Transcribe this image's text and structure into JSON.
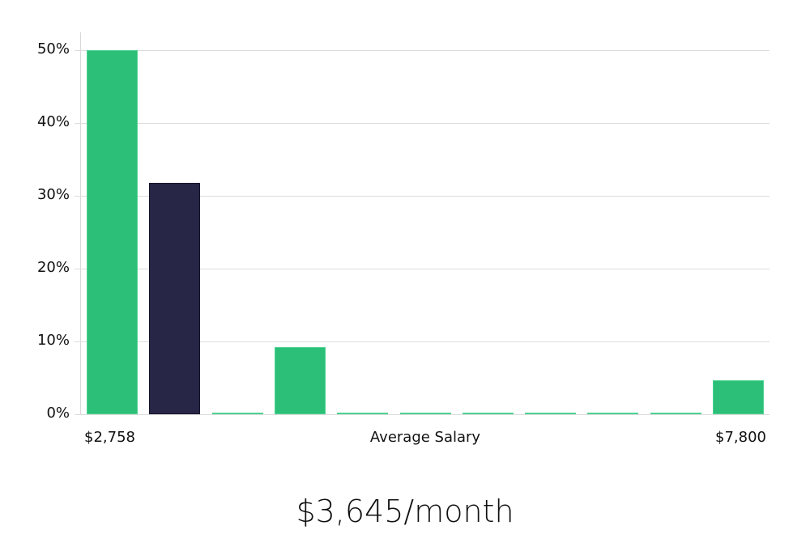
{
  "chart_data": {
    "type": "bar",
    "title": "",
    "xlabel": "Average Salary",
    "ylabel": "",
    "ylim": [
      0,
      50
    ],
    "yticks": [
      "0%",
      "10%",
      "20%",
      "30%",
      "40%",
      "50%"
    ],
    "x_range_labels": {
      "min": "$2,758",
      "max": "$7,800"
    },
    "categories": [
      "bin1",
      "bin2",
      "bin3",
      "bin4",
      "bin5",
      "bin6",
      "bin7",
      "bin8",
      "bin9",
      "bin10",
      "bin11"
    ],
    "values": [
      50,
      31.8,
      0,
      9.2,
      0,
      0,
      0,
      0,
      0,
      0,
      4.7
    ],
    "highlighted_index": 1,
    "colors": {
      "default": "#2bbf78",
      "highlight": "#282646"
    },
    "grid": true
  },
  "labels": {
    "x_min": "$2,758",
    "x_axis": "Average Salary",
    "x_max": "$7,800",
    "summary": "$3,645/month"
  }
}
